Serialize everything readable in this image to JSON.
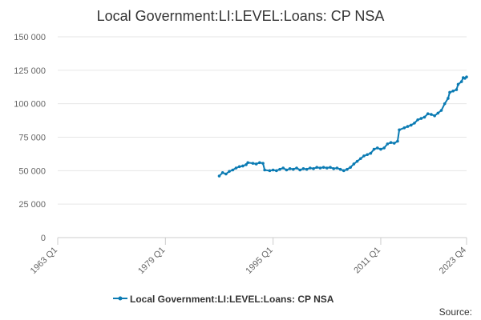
{
  "chart_data": {
    "type": "line",
    "title": "Local Government:LI:LEVEL:Loans: CP NSA",
    "xlabel": "",
    "ylabel": "",
    "x_tick_labels": [
      "1963 Q1",
      "1979 Q1",
      "1995 Q1",
      "2011 Q1",
      "2023 Q4"
    ],
    "x_range": [
      1963.0,
      2023.75
    ],
    "y_tick_labels": [
      "0",
      "25 000",
      "50 000",
      "75 000",
      "100 000",
      "125 000",
      "150 000"
    ],
    "ylim": [
      0,
      150000
    ],
    "grid": "horizontal",
    "legend_position": "bottom-center",
    "series": [
      {
        "name": "Local Government:LI:LEVEL:Loans: CP NSA",
        "color": "#0b7bb3",
        "points": [
          [
            1987.0,
            46000
          ],
          [
            1987.5,
            48500
          ],
          [
            1988.0,
            47500
          ],
          [
            1988.5,
            49500
          ],
          [
            1989.0,
            50500
          ],
          [
            1989.5,
            52000
          ],
          [
            1990.0,
            53000
          ],
          [
            1990.5,
            53500
          ],
          [
            1991.0,
            54500
          ],
          [
            1991.25,
            56000
          ],
          [
            1992.0,
            55500
          ],
          [
            1992.5,
            55000
          ],
          [
            1993.0,
            56000
          ],
          [
            1993.5,
            55500
          ],
          [
            1993.75,
            50500
          ],
          [
            1994.5,
            50000
          ],
          [
            1995.0,
            50500
          ],
          [
            1995.5,
            50000
          ],
          [
            1996.0,
            51000
          ],
          [
            1996.5,
            52000
          ],
          [
            1997.0,
            50500
          ],
          [
            1997.5,
            51500
          ],
          [
            1998.0,
            51000
          ],
          [
            1998.5,
            52000
          ],
          [
            1999.0,
            50500
          ],
          [
            1999.5,
            51500
          ],
          [
            2000.0,
            51000
          ],
          [
            2000.5,
            52000
          ],
          [
            2001.0,
            51500
          ],
          [
            2001.5,
            52500
          ],
          [
            2002.0,
            52000
          ],
          [
            2002.5,
            52500
          ],
          [
            2003.0,
            52000
          ],
          [
            2003.5,
            52500
          ],
          [
            2004.0,
            51500
          ],
          [
            2004.5,
            52000
          ],
          [
            2005.0,
            51000
          ],
          [
            2005.5,
            50000
          ],
          [
            2006.0,
            51000
          ],
          [
            2006.5,
            52500
          ],
          [
            2007.0,
            55000
          ],
          [
            2007.5,
            57000
          ],
          [
            2008.0,
            59000
          ],
          [
            2008.5,
            61000
          ],
          [
            2009.0,
            62000
          ],
          [
            2009.5,
            63000
          ],
          [
            2010.0,
            66000
          ],
          [
            2010.5,
            67000
          ],
          [
            2011.0,
            66000
          ],
          [
            2011.5,
            67000
          ],
          [
            2012.0,
            70000
          ],
          [
            2012.5,
            71000
          ],
          [
            2013.0,
            70500
          ],
          [
            2013.5,
            72000
          ],
          [
            2013.75,
            80500
          ],
          [
            2014.5,
            82000
          ],
          [
            2015.0,
            83000
          ],
          [
            2015.5,
            84000
          ],
          [
            2016.0,
            85500
          ],
          [
            2016.5,
            88000
          ],
          [
            2017.0,
            89000
          ],
          [
            2017.5,
            90000
          ],
          [
            2018.0,
            92500
          ],
          [
            2018.5,
            92000
          ],
          [
            2019.0,
            91000
          ],
          [
            2019.5,
            93000
          ],
          [
            2020.0,
            95000
          ],
          [
            2020.5,
            100000
          ],
          [
            2021.0,
            104000
          ],
          [
            2021.25,
            108500
          ],
          [
            2021.75,
            109500
          ],
          [
            2022.25,
            110500
          ],
          [
            2022.5,
            114500
          ],
          [
            2023.0,
            116500
          ],
          [
            2023.25,
            119500
          ],
          [
            2023.5,
            119000
          ],
          [
            2023.75,
            120000
          ]
        ]
      }
    ]
  },
  "footer": {
    "source_label": "Source:"
  }
}
